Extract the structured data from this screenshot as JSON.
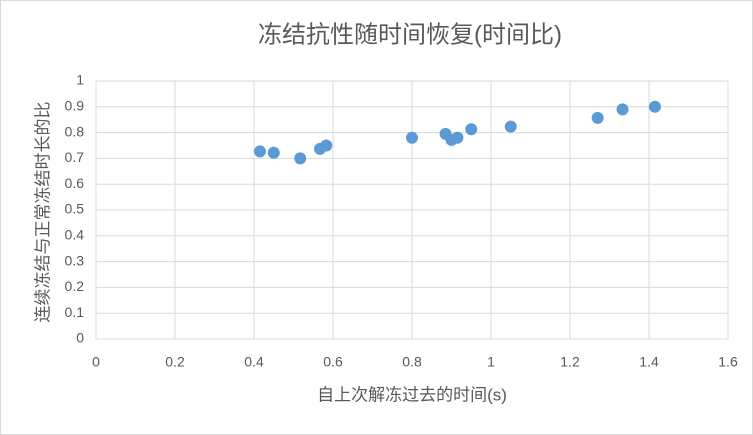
{
  "chart_data": {
    "type": "scatter",
    "title": "冻结抗性随时间恢复(时间比)",
    "x_label": "自上次解冻过去的时间(s)",
    "y_label": "连续冻结与正常冻结时长的比",
    "color": "#5b9bd5",
    "grid": true,
    "xlim": [
      0,
      1.6
    ],
    "xticks": [
      0,
      0.2,
      0.4,
      0.6,
      0.8,
      1,
      1.2,
      1.4,
      1.6
    ],
    "ylim": [
      0,
      1
    ],
    "yticks": [
      0,
      0.1,
      0.2,
      0.3,
      0.4,
      0.5,
      0.6,
      0.7,
      0.8,
      0.9,
      1
    ],
    "x": [
      0.415,
      0.45,
      0.517,
      0.567,
      0.583,
      0.8,
      0.885,
      0.9,
      0.915,
      0.95,
      1.05,
      1.27,
      1.333,
      1.415
    ],
    "values": [
      0.727,
      0.722,
      0.7,
      0.737,
      0.75,
      0.78,
      0.795,
      0.772,
      0.78,
      0.813,
      0.823,
      0.857,
      0.89,
      0.9
    ]
  }
}
